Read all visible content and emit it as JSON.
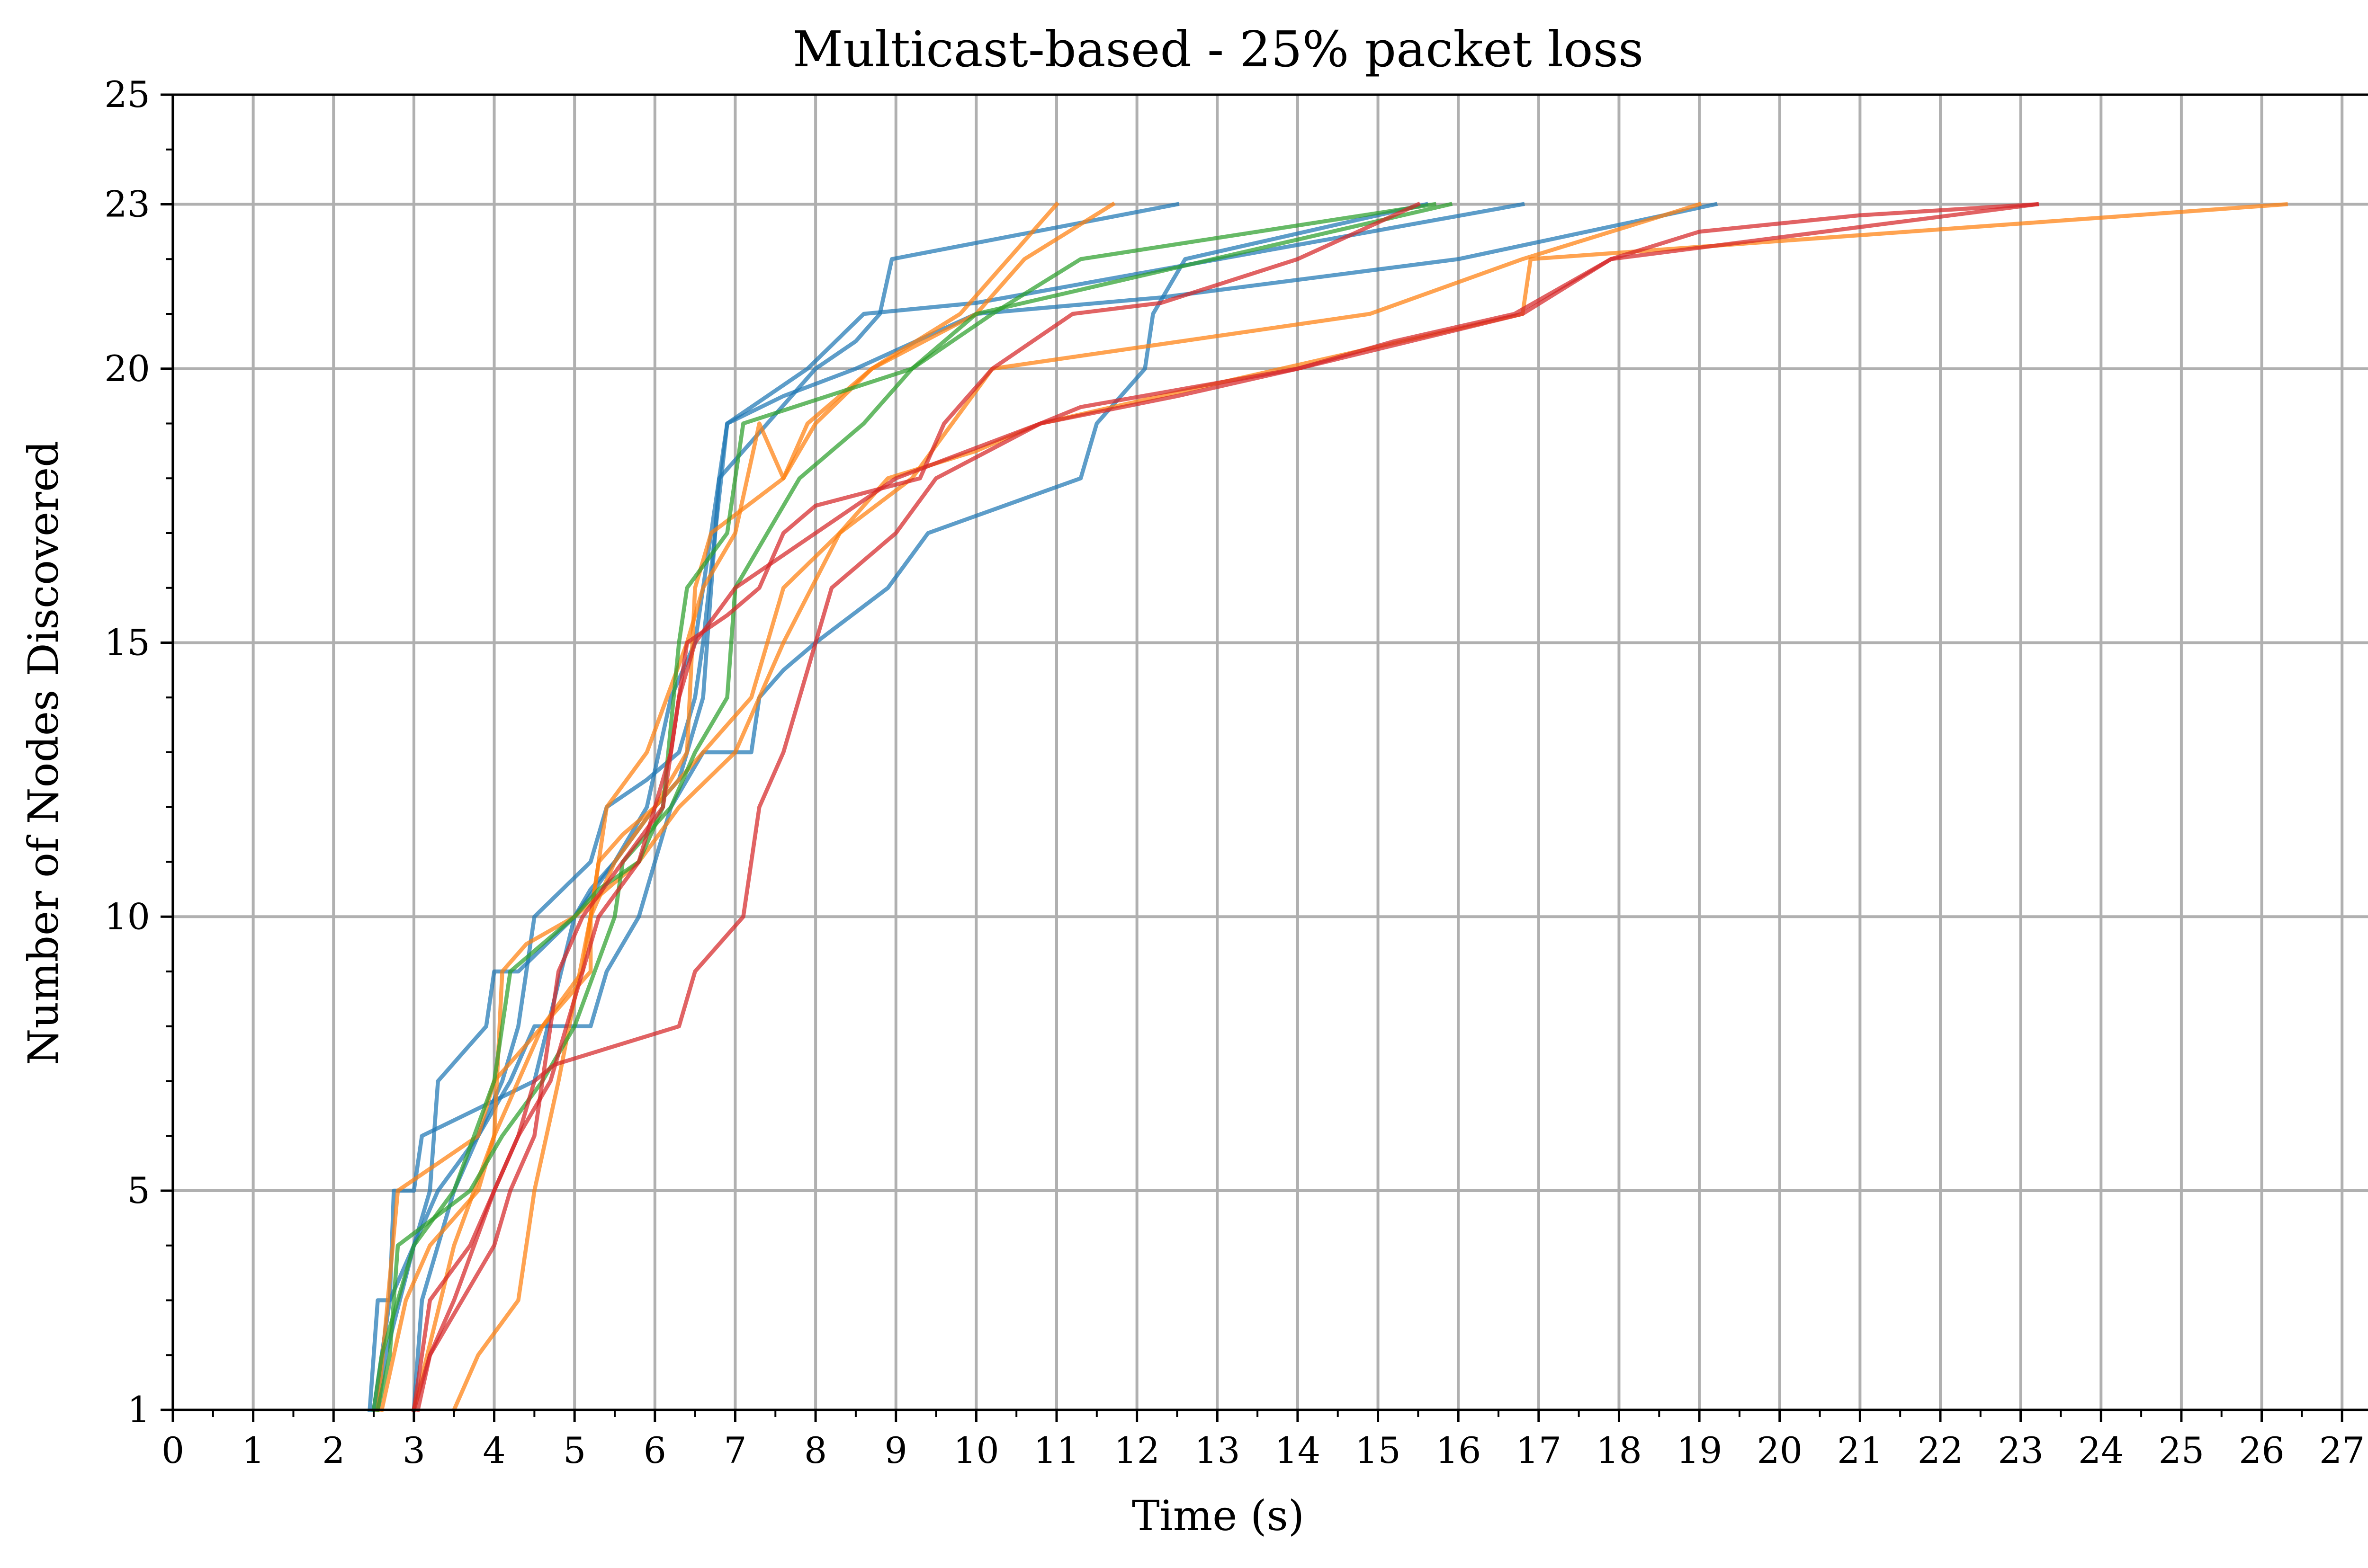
{
  "chart_data": {
    "type": "line",
    "title": "Multicast-based - 25% packet loss",
    "xlabel": "Time (s)",
    "ylabel": "Number of Nodes Discovered",
    "xlim": [
      0,
      27.5
    ],
    "ylim": [
      1,
      25
    ],
    "x_ticks": [
      0,
      1,
      2,
      3,
      4,
      5,
      6,
      7,
      8,
      9,
      10,
      11,
      12,
      13,
      14,
      15,
      16,
      17,
      18,
      19,
      20,
      21,
      22,
      23,
      24,
      25,
      26,
      27
    ],
    "y_ticks": [
      1,
      5,
      10,
      15,
      20,
      23,
      25
    ],
    "x_tick_labels": [
      "0",
      "1",
      "2",
      "3",
      "4",
      "5",
      "6",
      "7",
      "8",
      "9",
      "10",
      "11",
      "12",
      "13",
      "14",
      "15",
      "16",
      "17",
      "18",
      "19",
      "20",
      "21",
      "22",
      "23",
      "24",
      "25",
      "26",
      "27"
    ],
    "y_tick_labels": [
      "1",
      "5",
      "10",
      "15",
      "20",
      "23",
      "25"
    ],
    "grid": true,
    "colors": {
      "blue": "#1f77b4",
      "orange": "#ff7f0e",
      "green": "#2ca02c",
      "red": "#d62728"
    },
    "series": [
      {
        "color": "#1f77b4",
        "points": [
          [
            2.45,
            1
          ],
          [
            2.55,
            3
          ],
          [
            2.7,
            3
          ],
          [
            2.75,
            5
          ],
          [
            3.0,
            5
          ],
          [
            3.1,
            6
          ],
          [
            3.8,
            6.5
          ],
          [
            4.5,
            7
          ],
          [
            5.0,
            10
          ],
          [
            5.2,
            10.5
          ],
          [
            5.5,
            11
          ],
          [
            6.0,
            12
          ],
          [
            6.3,
            12.5
          ],
          [
            6.4,
            13
          ],
          [
            6.6,
            14
          ],
          [
            6.7,
            16
          ],
          [
            6.8,
            18
          ],
          [
            8.0,
            20
          ],
          [
            8.5,
            20.5
          ],
          [
            8.8,
            21
          ],
          [
            8.95,
            22
          ],
          [
            12.5,
            23
          ]
        ]
      },
      {
        "color": "#1f77b4",
        "points": [
          [
            2.5,
            1
          ],
          [
            2.6,
            2
          ],
          [
            2.7,
            3
          ],
          [
            3.0,
            4
          ],
          [
            3.2,
            5
          ],
          [
            3.3,
            7
          ],
          [
            3.9,
            8
          ],
          [
            4.0,
            9
          ],
          [
            4.3,
            9
          ],
          [
            5.0,
            10
          ],
          [
            5.5,
            11
          ],
          [
            5.9,
            12
          ],
          [
            6.2,
            14
          ],
          [
            6.5,
            15
          ],
          [
            6.7,
            17
          ],
          [
            6.9,
            19
          ],
          [
            7.6,
            19.5
          ],
          [
            8.5,
            20
          ],
          [
            10.0,
            21
          ],
          [
            12.3,
            21.3
          ],
          [
            16.0,
            22
          ],
          [
            19.2,
            23
          ]
        ]
      },
      {
        "color": "#1f77b4",
        "points": [
          [
            2.55,
            1
          ],
          [
            2.65,
            2
          ],
          [
            3.0,
            4
          ],
          [
            3.3,
            5
          ],
          [
            3.8,
            6
          ],
          [
            4.1,
            7
          ],
          [
            4.3,
            8
          ],
          [
            4.5,
            10
          ],
          [
            5.2,
            11
          ],
          [
            5.4,
            12
          ],
          [
            5.9,
            12.5
          ],
          [
            6.3,
            13
          ],
          [
            6.5,
            14
          ],
          [
            6.6,
            15
          ],
          [
            6.9,
            19
          ],
          [
            7.4,
            19.5
          ],
          [
            7.9,
            20
          ],
          [
            8.6,
            21
          ],
          [
            10.0,
            21.2
          ],
          [
            16.8,
            23
          ]
        ]
      },
      {
        "color": "#1f77b4",
        "points": [
          [
            3.0,
            1
          ],
          [
            3.1,
            3
          ],
          [
            3.3,
            4
          ],
          [
            3.5,
            5
          ],
          [
            3.8,
            6
          ],
          [
            4.2,
            7
          ],
          [
            4.5,
            8
          ],
          [
            5.2,
            8
          ],
          [
            5.4,
            9
          ],
          [
            5.8,
            10
          ],
          [
            6.2,
            12
          ],
          [
            6.6,
            13
          ],
          [
            7.2,
            13
          ],
          [
            7.3,
            14
          ],
          [
            7.6,
            14.5
          ],
          [
            8.0,
            15
          ],
          [
            8.9,
            16
          ],
          [
            9.4,
            17
          ],
          [
            11.3,
            18
          ],
          [
            11.5,
            19
          ],
          [
            12.1,
            20
          ],
          [
            12.2,
            21
          ],
          [
            12.6,
            22
          ],
          [
            15.6,
            23
          ]
        ]
      },
      {
        "color": "#ff7f0e",
        "points": [
          [
            2.55,
            1
          ],
          [
            2.8,
            5
          ],
          [
            3.3,
            5.5
          ],
          [
            3.8,
            6
          ],
          [
            4.0,
            7
          ],
          [
            4.6,
            8
          ],
          [
            5.1,
            9
          ],
          [
            5.3,
            11
          ],
          [
            5.6,
            11.5
          ],
          [
            6.0,
            12
          ],
          [
            6.4,
            13
          ],
          [
            6.5,
            16
          ],
          [
            6.7,
            17
          ],
          [
            7.6,
            18
          ],
          [
            8.0,
            19
          ],
          [
            8.7,
            20
          ],
          [
            10.0,
            21
          ],
          [
            10.6,
            22
          ],
          [
            11.7,
            23
          ]
        ]
      },
      {
        "color": "#ff7f0e",
        "points": [
          [
            3.5,
            1
          ],
          [
            3.8,
            2
          ],
          [
            4.3,
            3
          ],
          [
            4.5,
            5
          ],
          [
            4.8,
            7
          ],
          [
            5.2,
            10
          ],
          [
            5.4,
            12
          ],
          [
            5.9,
            13
          ],
          [
            6.4,
            15
          ],
          [
            6.6,
            16
          ],
          [
            7.0,
            17
          ],
          [
            7.3,
            19
          ],
          [
            7.6,
            18
          ],
          [
            7.9,
            19
          ],
          [
            8.7,
            20
          ],
          [
            9.8,
            21
          ],
          [
            10.4,
            22
          ],
          [
            11.0,
            23
          ]
        ]
      },
      {
        "color": "#ff7f0e",
        "points": [
          [
            2.6,
            1
          ],
          [
            2.9,
            3
          ],
          [
            3.2,
            4
          ],
          [
            3.8,
            5
          ],
          [
            4.0,
            6
          ],
          [
            4.1,
            9
          ],
          [
            4.4,
            9.5
          ],
          [
            5.0,
            10
          ],
          [
            5.8,
            11
          ],
          [
            6.3,
            12
          ],
          [
            7.0,
            13
          ],
          [
            7.3,
            14
          ],
          [
            7.6,
            15
          ],
          [
            8.3,
            17
          ],
          [
            9.2,
            18
          ],
          [
            9.7,
            19
          ],
          [
            10.2,
            20
          ],
          [
            14.9,
            21
          ],
          [
            16.8,
            22
          ],
          [
            19.0,
            23
          ]
        ]
      },
      {
        "color": "#ff7f0e",
        "points": [
          [
            3.0,
            1
          ],
          [
            3.5,
            4
          ],
          [
            4.0,
            6
          ],
          [
            4.3,
            7
          ],
          [
            4.6,
            8
          ],
          [
            5.2,
            9
          ],
          [
            5.2,
            10
          ],
          [
            5.5,
            11
          ],
          [
            6.0,
            12
          ],
          [
            6.6,
            13
          ],
          [
            7.2,
            14
          ],
          [
            7.6,
            16
          ],
          [
            8.3,
            17
          ],
          [
            8.9,
            18
          ],
          [
            10.0,
            18.5
          ],
          [
            10.8,
            19
          ],
          [
            16.8,
            21
          ],
          [
            16.9,
            22
          ],
          [
            26.3,
            23
          ]
        ]
      },
      {
        "color": "#2ca02c",
        "points": [
          [
            2.55,
            1
          ],
          [
            2.7,
            2
          ],
          [
            2.8,
            4
          ],
          [
            3.7,
            5
          ],
          [
            4.1,
            6
          ],
          [
            4.6,
            7
          ],
          [
            5.0,
            8
          ],
          [
            5.5,
            10
          ],
          [
            5.6,
            11
          ],
          [
            6.2,
            12
          ],
          [
            6.5,
            13
          ],
          [
            6.9,
            14
          ],
          [
            7.0,
            16
          ],
          [
            7.4,
            17
          ],
          [
            7.8,
            18
          ],
          [
            8.6,
            19
          ],
          [
            9.2,
            20
          ],
          [
            10.0,
            21
          ],
          [
            15.9,
            23
          ]
        ]
      },
      {
        "color": "#2ca02c",
        "points": [
          [
            2.5,
            1
          ],
          [
            2.6,
            2
          ],
          [
            3.0,
            4
          ],
          [
            3.5,
            5
          ],
          [
            4.0,
            7
          ],
          [
            4.2,
            9
          ],
          [
            4.6,
            9.5
          ],
          [
            5.0,
            10
          ],
          [
            5.3,
            10.5
          ],
          [
            5.8,
            11
          ],
          [
            6.1,
            12
          ],
          [
            6.3,
            15
          ],
          [
            6.4,
            16
          ],
          [
            6.9,
            17
          ],
          [
            7.1,
            19
          ],
          [
            9.2,
            20
          ],
          [
            10.2,
            21
          ],
          [
            11.3,
            22
          ],
          [
            15.7,
            23
          ]
        ]
      },
      {
        "color": "#d62728",
        "points": [
          [
            3.0,
            1
          ],
          [
            3.2,
            3
          ],
          [
            3.7,
            4
          ],
          [
            4.3,
            6
          ],
          [
            4.7,
            7
          ],
          [
            4.9,
            8
          ],
          [
            5.3,
            10
          ],
          [
            5.8,
            11
          ],
          [
            6.2,
            13
          ],
          [
            6.4,
            15
          ],
          [
            6.9,
            15.5
          ],
          [
            7.3,
            16
          ],
          [
            7.6,
            17
          ],
          [
            8.0,
            17.5
          ],
          [
            9.3,
            18
          ],
          [
            9.6,
            19
          ],
          [
            10.2,
            20
          ],
          [
            11.2,
            21
          ],
          [
            12.3,
            21.2
          ],
          [
            14.0,
            22
          ],
          [
            15.5,
            23
          ]
        ]
      },
      {
        "color": "#d62728",
        "points": [
          [
            3.05,
            1
          ],
          [
            3.2,
            2
          ],
          [
            3.5,
            3
          ],
          [
            4.0,
            5
          ],
          [
            4.3,
            6
          ],
          [
            4.5,
            7
          ],
          [
            4.75,
            7.3
          ],
          [
            6.3,
            8
          ],
          [
            6.5,
            9
          ],
          [
            7.1,
            10
          ],
          [
            7.3,
            12
          ],
          [
            7.6,
            13
          ],
          [
            8.0,
            15
          ],
          [
            8.2,
            16
          ],
          [
            9.0,
            17
          ],
          [
            9.5,
            18
          ],
          [
            10.8,
            19
          ],
          [
            11.3,
            19.3
          ],
          [
            14.0,
            20
          ],
          [
            16.8,
            21
          ],
          [
            17.9,
            22
          ],
          [
            23.2,
            23
          ]
        ]
      },
      {
        "color": "#d62728",
        "points": [
          [
            3.0,
            1
          ],
          [
            3.2,
            2
          ],
          [
            3.6,
            3
          ],
          [
            4.0,
            4
          ],
          [
            4.2,
            5
          ],
          [
            4.5,
            6
          ],
          [
            4.8,
            9
          ],
          [
            5.1,
            10
          ],
          [
            5.6,
            11
          ],
          [
            6.1,
            12
          ],
          [
            6.3,
            14
          ],
          [
            6.5,
            15
          ],
          [
            7.0,
            16
          ],
          [
            8.0,
            17
          ],
          [
            9.0,
            18
          ],
          [
            10.8,
            19
          ],
          [
            12.5,
            19.5
          ],
          [
            14.0,
            20
          ],
          [
            15.2,
            20.5
          ],
          [
            16.7,
            21
          ],
          [
            17.9,
            22
          ],
          [
            19.0,
            22.5
          ],
          [
            21.0,
            22.8
          ],
          [
            23.2,
            23
          ]
        ]
      }
    ]
  }
}
